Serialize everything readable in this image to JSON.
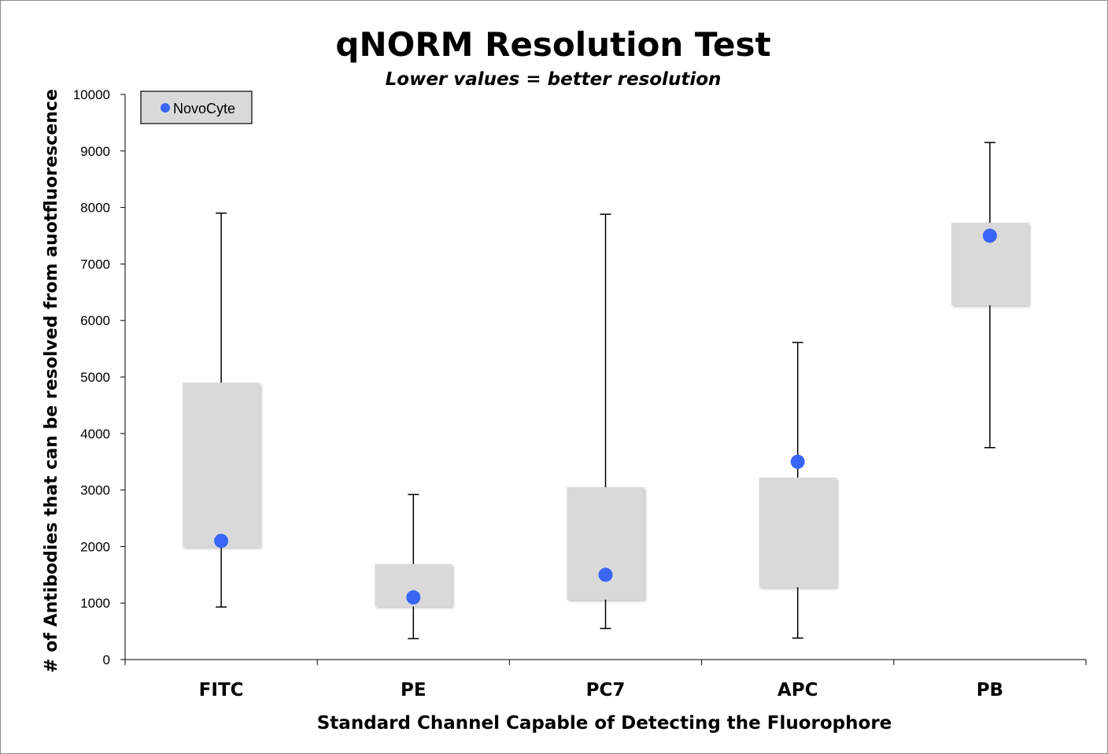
{
  "chart_data": {
    "type": "box",
    "title": "qNORM Resolution Test",
    "subtitle": "Lower values = better resolution",
    "xlabel": "Standard Channel Capable of Detecting the Fluorophore",
    "ylabel": "# of Antibodies that can be resolved from auotfluorescence",
    "ylim": [
      0,
      10000
    ],
    "yticks": [
      0,
      1000,
      2000,
      3000,
      4000,
      5000,
      6000,
      7000,
      8000,
      9000,
      10000
    ],
    "categories": [
      "FITC",
      "PE",
      "PC7",
      "APC",
      "PB"
    ],
    "boxes": [
      {
        "min": 930,
        "q1": 1990,
        "q3": 4900,
        "max": 7900
      },
      {
        "min": 370,
        "q1": 940,
        "q3": 1690,
        "max": 2920
      },
      {
        "min": 550,
        "q1": 1060,
        "q3": 3050,
        "max": 7880
      },
      {
        "min": 380,
        "q1": 1280,
        "q3": 3220,
        "max": 5610
      },
      {
        "min": 3750,
        "q1": 6270,
        "q3": 7730,
        "max": 9150
      }
    ],
    "series": [
      {
        "name": "NovoCyte",
        "values": [
          2100,
          1100,
          1500,
          3500,
          7500
        ]
      }
    ],
    "legend_position": "top-left",
    "grid": false
  },
  "colors": {
    "box_fill": "#d9d9d9",
    "marker": "#3a66f5",
    "whisker": "#000000"
  }
}
